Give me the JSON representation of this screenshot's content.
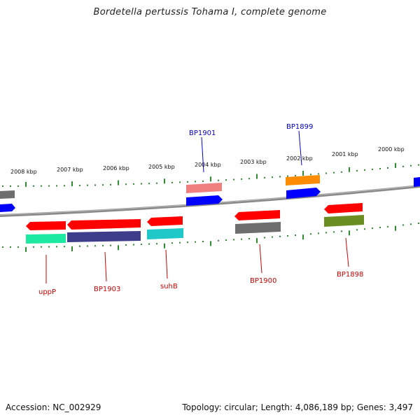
{
  "title": "Bordetella pertussis Tohama I, complete genome",
  "footer": {
    "accession": "Accession: NC_002929",
    "stats": "Topology: circular; Length: 4,086,189 bp; Genes: 3,497"
  },
  "scale_labels": [
    "2008 kbp",
    "2007 kbp",
    "2006 kbp",
    "2005 kbp",
    "2004 kbp",
    "2003 kbp",
    "2002 kbp",
    "2001 kbp",
    "2000 kbp"
  ],
  "colors": {
    "backbone": "#8a8a8a",
    "ticks": "#2e8b2e",
    "label_top": "#0000cc",
    "label_bottom": "#cc0000"
  },
  "features_outer": [
    {
      "name": "grey-feature-left",
      "color": "#6e6e6e"
    },
    {
      "name": "blue-feature-left",
      "color": "#0000ff"
    },
    {
      "name": "pink-feature",
      "color": "#f08080"
    },
    {
      "name": "BP1901-feature",
      "color": "#0000ff"
    },
    {
      "name": "orange-feature",
      "color": "#ff8c00"
    },
    {
      "name": "BP1899-feature",
      "color": "#0000ff"
    },
    {
      "name": "blue-feature-right",
      "color": "#0000ff"
    }
  ],
  "features_inner": [
    {
      "name": "uppP-red",
      "color": "#ff0000"
    },
    {
      "name": "uppP-green",
      "color": "#1de9a0"
    },
    {
      "name": "BP1903-red",
      "color": "#ff0000"
    },
    {
      "name": "BP1903-navy",
      "color": "#3d3d8c"
    },
    {
      "name": "suhB-red",
      "color": "#ff0000"
    },
    {
      "name": "suhB-teal",
      "color": "#20c8c8"
    },
    {
      "name": "BP1900-red",
      "color": "#ff0000"
    },
    {
      "name": "BP1900-grey",
      "color": "#6e6e6e"
    },
    {
      "name": "BP1898-red",
      "color": "#ff0000"
    },
    {
      "name": "BP1898-olive",
      "color": "#6b8e23"
    }
  ],
  "gene_labels_top": [
    "BP1901",
    "BP1899"
  ],
  "gene_labels_bottom": [
    "uppP",
    "BP1903",
    "suhB",
    "BP1900",
    "BP1898"
  ]
}
